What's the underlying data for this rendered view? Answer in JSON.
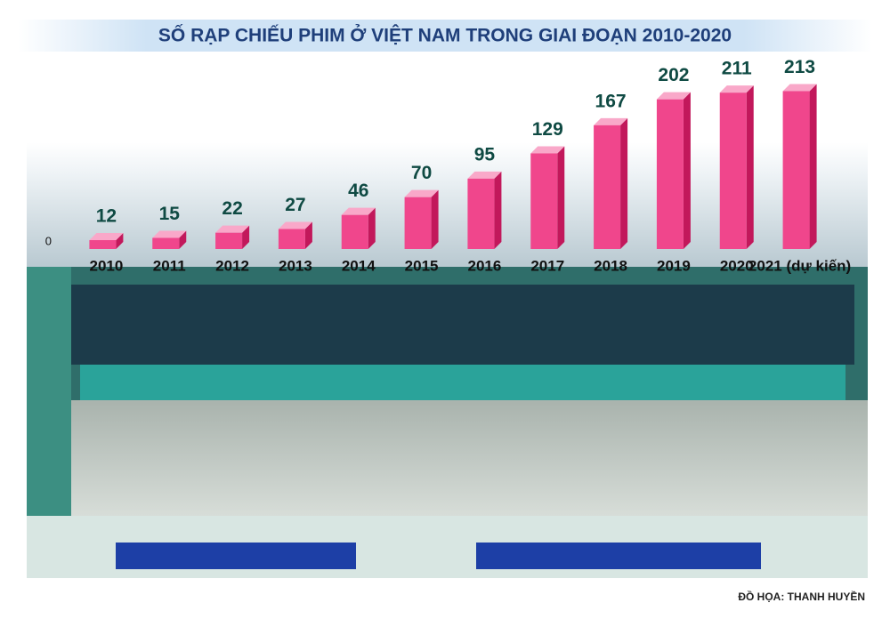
{
  "chart_data": {
    "type": "bar3d",
    "title": "SỐ RẠP CHIẾU PHIM Ở VIỆT NAM TRONG GIAI ĐOẠN 2010-2020",
    "categories": [
      "2010",
      "2011",
      "2012",
      "2013",
      "2014",
      "2015",
      "2016",
      "2017",
      "2018",
      "2019",
      "2020",
      "2021 (dự kiến)"
    ],
    "values": [
      12,
      15,
      22,
      27,
      46,
      70,
      95,
      129,
      167,
      202,
      211,
      213
    ],
    "color": "#f0468c",
    "ylim": [
      0,
      240
    ],
    "yticks": [
      0
    ],
    "grid": false,
    "credit": "ĐỒ HỌA: THANH HUYỀN"
  }
}
